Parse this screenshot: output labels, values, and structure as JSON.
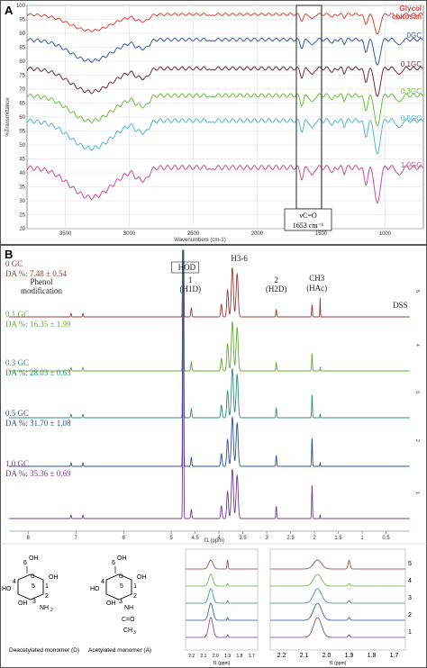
{
  "figure": {
    "panel_a": {
      "label": "A",
      "y_ticks": [
        "100",
        "95",
        "90",
        "85",
        "80",
        "75",
        "70",
        "65",
        "60",
        "55",
        "50",
        "45",
        "40",
        "35",
        "30",
        "25",
        "20"
      ],
      "x_ticks": [
        "3500",
        "3000",
        "2500",
        "2000",
        "1500",
        "1000"
      ],
      "x_label": "Wavenumbers (cm-1)",
      "y_label": "%Transmittance",
      "annotation_line1": "νC=O",
      "annotation_line2": "1653 cm⁻¹",
      "series": [
        {
          "name": "Glycol chitosan",
          "label_line1": "Glycol",
          "label_line2": "chitosan",
          "color": "#d9453a"
        },
        {
          "name": "0GC",
          "label_line1": "0GC",
          "color": "#3b57b4"
        },
        {
          "name": "0.1GC",
          "label_line1": "0.1GC",
          "color": "#6b2d3e"
        },
        {
          "name": "0.3GC",
          "label_line1": "0.3GC",
          "color": "#6bbf3a"
        },
        {
          "name": "0.5GC",
          "label_line1": "0.5GC",
          "color": "#4fb7d8"
        },
        {
          "name": "1.0GC",
          "label_line1": "1.0GC",
          "color": "#c94f8f"
        }
      ]
    },
    "panel_b": {
      "label": "B",
      "x_ticks": [
        "8",
        "7",
        "6",
        "5",
        "4.5",
        "4",
        "3.5",
        "3",
        "2.5",
        "2",
        "1.5",
        "1",
        "0.5"
      ],
      "x_label": "f1 (ppm)",
      "peaks": {
        "phenol": "Phenol\nmodification",
        "h1d": "1\n(H1D)",
        "hod": "HOD",
        "h36": "H3-6",
        "h2d": "2\n(H2D)",
        "hac_ch3": "CH3",
        "hac": "(HAc)",
        "dss": "DSS"
      },
      "spectra": [
        {
          "name": "0 GC",
          "da": "DA %: 7.48 ± 0.54",
          "color": "#9b3a3a",
          "index": "5"
        },
        {
          "name": "0.1 GC",
          "da": "DA %: 16.35 ± 1.99",
          "color": "#6aa83a",
          "index": "4"
        },
        {
          "name": "0.3 GC",
          "da": "DA %: 28.03 ± 0.63",
          "color": "#2f8f7a",
          "index": "3"
        },
        {
          "name": "0.5 GC",
          "da": "DA %: 31.70 ± 1.08",
          "color": "#2e4f9a",
          "index": "2"
        },
        {
          "name": "1.0 GC",
          "da": "DA %: 35.36 ± 0.69",
          "color": "#6e3c9b",
          "index": "1"
        }
      ],
      "monomer_d": "Deacetylated monomer (D)",
      "monomer_a": "Acetylated monomer (A)",
      "inset1_ticks": [
        "2.2",
        "2.1",
        "2.0",
        "1.9",
        "1.8",
        "1.7"
      ],
      "inset2_ticks": [
        "2.2",
        "2.1",
        "2.0",
        "1.9",
        "1.8",
        "1.7"
      ],
      "inset_x_label": "f1 (ppm)",
      "inset2_indices": [
        "5",
        "4",
        "3",
        "2",
        "1"
      ]
    }
  }
}
